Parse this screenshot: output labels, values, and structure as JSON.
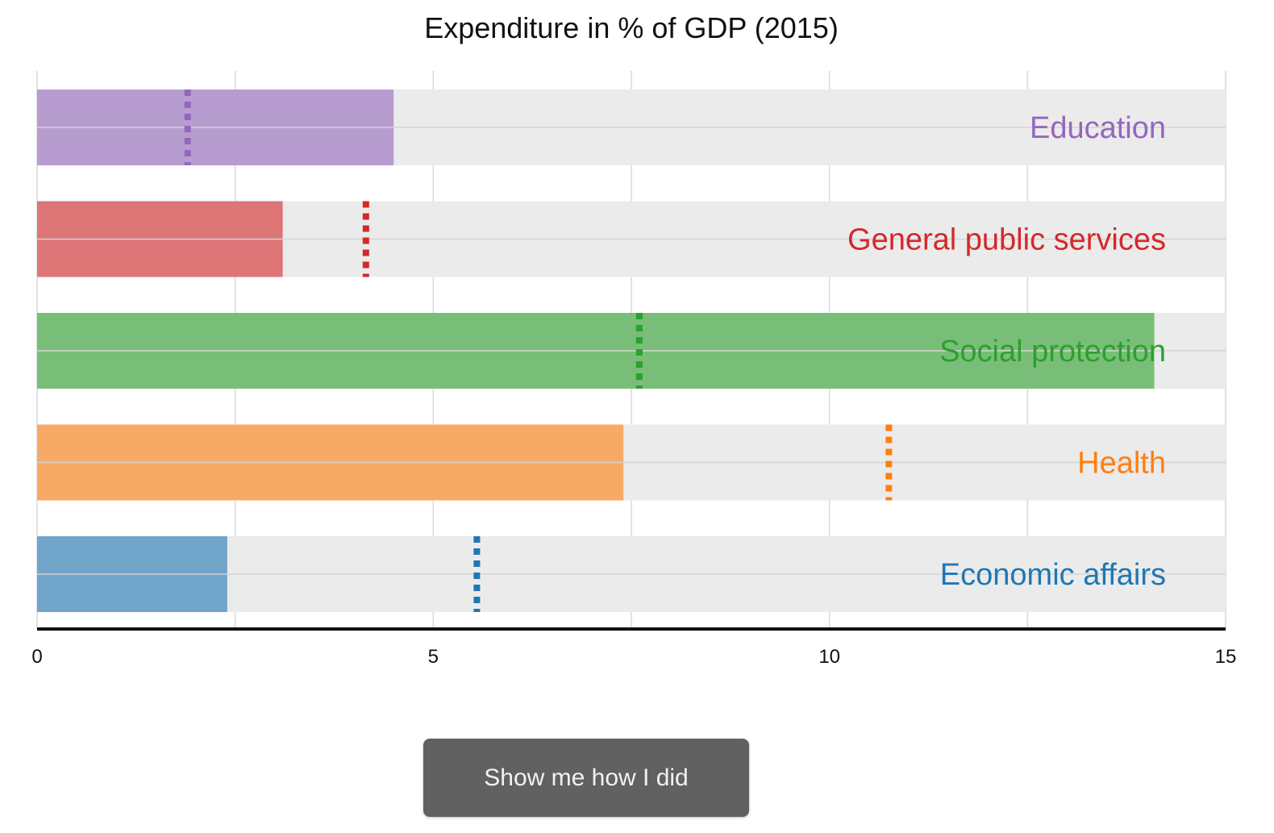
{
  "chart_data": {
    "type": "bar",
    "title": "Expenditure in % of GDP (2015)",
    "xlabel": "",
    "ylabel": "",
    "xlim": [
      0,
      15
    ],
    "xticks": [
      0,
      5,
      10,
      15
    ],
    "xtick_labels": [
      "0",
      "5",
      "10",
      "15"
    ],
    "grid": true,
    "orientation": "horizontal",
    "categories": [
      "Education",
      "General public services",
      "Social protection",
      "Health",
      "Economic affairs"
    ],
    "values": [
      4.5,
      3.1,
      14.1,
      7.4,
      2.4
    ],
    "guesses": [
      1.9,
      4.15,
      7.6,
      10.75,
      5.55
    ],
    "colors": [
      "#9467bd",
      "#d62728",
      "#2ca02c",
      "#ff7f0e",
      "#1f77b4"
    ]
  },
  "button": {
    "label": "Show me how I did"
  }
}
